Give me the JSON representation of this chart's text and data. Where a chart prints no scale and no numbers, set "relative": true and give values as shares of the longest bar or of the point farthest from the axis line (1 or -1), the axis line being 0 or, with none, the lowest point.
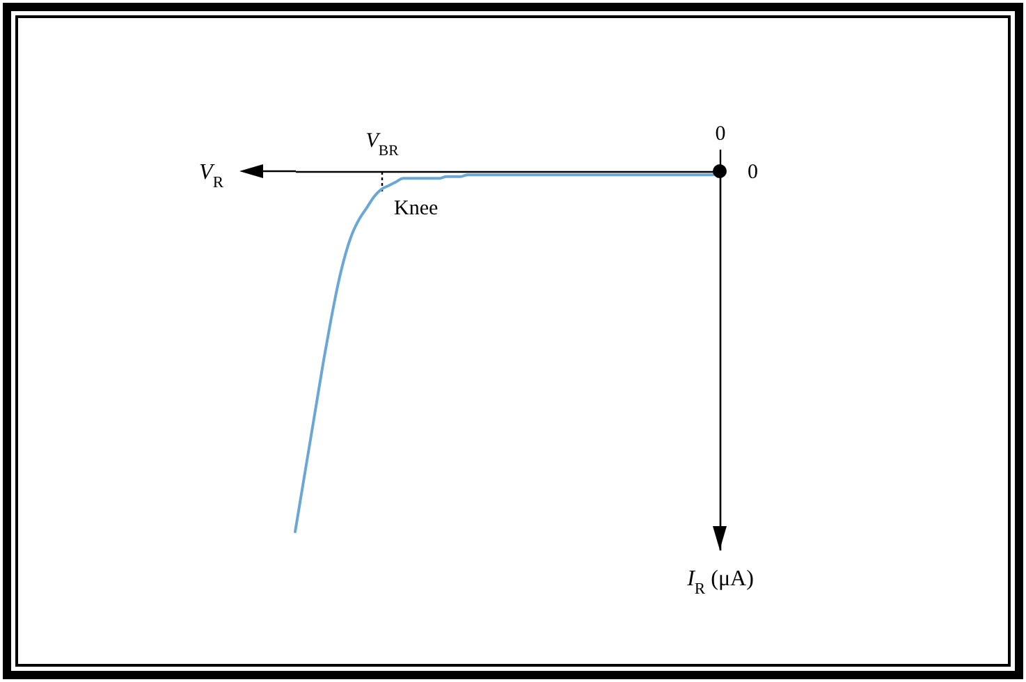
{
  "chart_data": {
    "type": "line",
    "relative": true,
    "xlabel": "V$_{R}$",
    "ylabel": "I$_{R}$ (μA)",
    "categories": [
      null,
      null,
      null,
      null,
      null,
      null,
      null,
      null,
      null,
      null,
      null,
      null,
      "V$_{BR}$",
      null,
      null,
      null,
      null,
      null,
      null,
      null,
      null,
      null,
      null,
      null,
      null,
      null,
      null,
      null,
      null,
      null,
      null,
      null,
      null,
      null,
      null,
      null,
      null,
      null,
      null,
      null,
      null,
      null,
      null,
      null,
      null,
      null,
      null,
      null,
      null,
      null,
      null,
      null,
      null,
      null,
      null,
      null,
      null,
      null,
      null,
      "0"
    ],
    "series": [
      {
        "color": "#6ba7d6",
        "values": [
          -1,
          -0.88,
          -0.76,
          -0.64,
          -0.52,
          -0.41,
          -0.31,
          -0.23,
          -0.17,
          -0.13,
          -0.1,
          -0.07,
          -0.05,
          -0.04,
          -0.03,
          -0.02,
          -0.02,
          -0.02,
          -0.02,
          -0.02,
          -0.02,
          -0.015,
          -0.015,
          -0.015,
          -0.01,
          -0.01,
          -0.01,
          -0.01,
          -0.01,
          -0.01,
          -0.01,
          -0.01,
          -0.01,
          -0.01,
          -0.01,
          -0.01,
          -0.01,
          -0.01,
          -0.01,
          -0.01,
          -0.01,
          -0.01,
          -0.01,
          -0.01,
          -0.01,
          -0.01,
          -0.01,
          -0.01,
          -0.01,
          -0.01,
          -0.01,
          -0.01,
          -0.01,
          -0.01,
          -0.01,
          -0.01,
          -0.01,
          -0.01,
          -0.01,
          0
        ]
      }
    ],
    "annotations": [
      "Knee",
      {
        "text": "0",
        "x": "0"
      }
    ]
  }
}
